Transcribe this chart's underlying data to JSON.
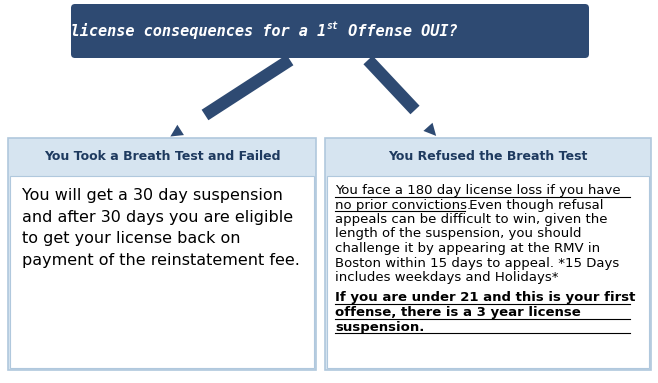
{
  "header_bg": "#2e4a72",
  "header_text_color": "#ffffff",
  "box_header_bg": "#d6e4f0",
  "content_bg": "#ffffff",
  "box_border": "#b0c8dd",
  "left_header": "You Took a Breath Test and Failed",
  "right_header": "You Refused the Breath Test",
  "left_body": "You will get a 30 day suspension\nand after 30 days you are eligible\nto get your license back on\npayment of the reinstatement fee.",
  "arrow_color": "#2e4a72",
  "bg_color": "#ffffff",
  "right_para1_underlined": "You face a 180 day license loss if you have\nno prior convictions.",
  "right_para1_normal": " Even though refusal\nappeals can be difficult to win, given the\nlength of the suspension, you should\nchallenge it by appearing at the RMV in\nBoston within 15 days to appeal. *15 Days\nincludes weekdays and Holidays*",
  "right_para2_bold": "If you are under 21",
  "right_para2_bold_rest": " and this is your first\noffense, there is a 3 year license\nsuspension."
}
